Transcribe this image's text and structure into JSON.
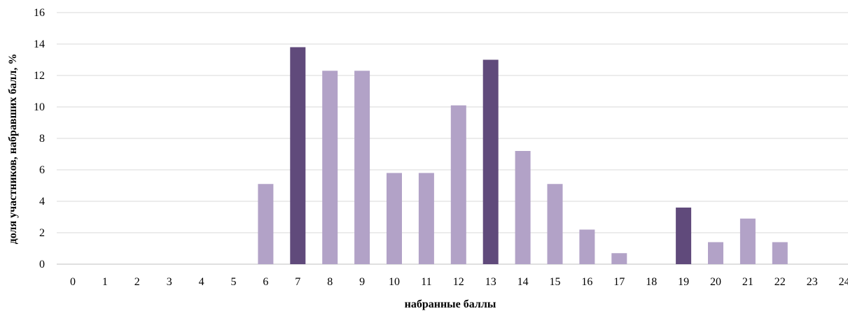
{
  "chart_data": {
    "type": "bar",
    "title": "",
    "xlabel": "набранные баллы",
    "ylabel": "доля участников, набравших балл, %",
    "ylim": [
      0,
      16
    ],
    "yticks": [
      0,
      2,
      4,
      6,
      8,
      10,
      12,
      14,
      16
    ],
    "grid": true,
    "legend": "none",
    "categories": [
      "0",
      "1",
      "2",
      "3",
      "4",
      "5",
      "6",
      "7",
      "8",
      "9",
      "10",
      "11",
      "12",
      "13",
      "14",
      "15",
      "16",
      "17",
      "18",
      "19",
      "20",
      "21",
      "22",
      "23",
      "24"
    ],
    "values": [
      0,
      0,
      0,
      0,
      0,
      0,
      5.1,
      13.8,
      12.3,
      12.3,
      5.8,
      5.8,
      10.1,
      13.0,
      7.2,
      5.1,
      2.2,
      0.7,
      0,
      3.6,
      1.4,
      2.9,
      1.4,
      0,
      0
    ],
    "highlighted": [
      "7",
      "13",
      "19"
    ],
    "colors": {
      "bar": "#b2a2c7",
      "highlight": "#604a7b",
      "grid": "#d9d9d9",
      "axis": "#bfbfbf"
    }
  }
}
